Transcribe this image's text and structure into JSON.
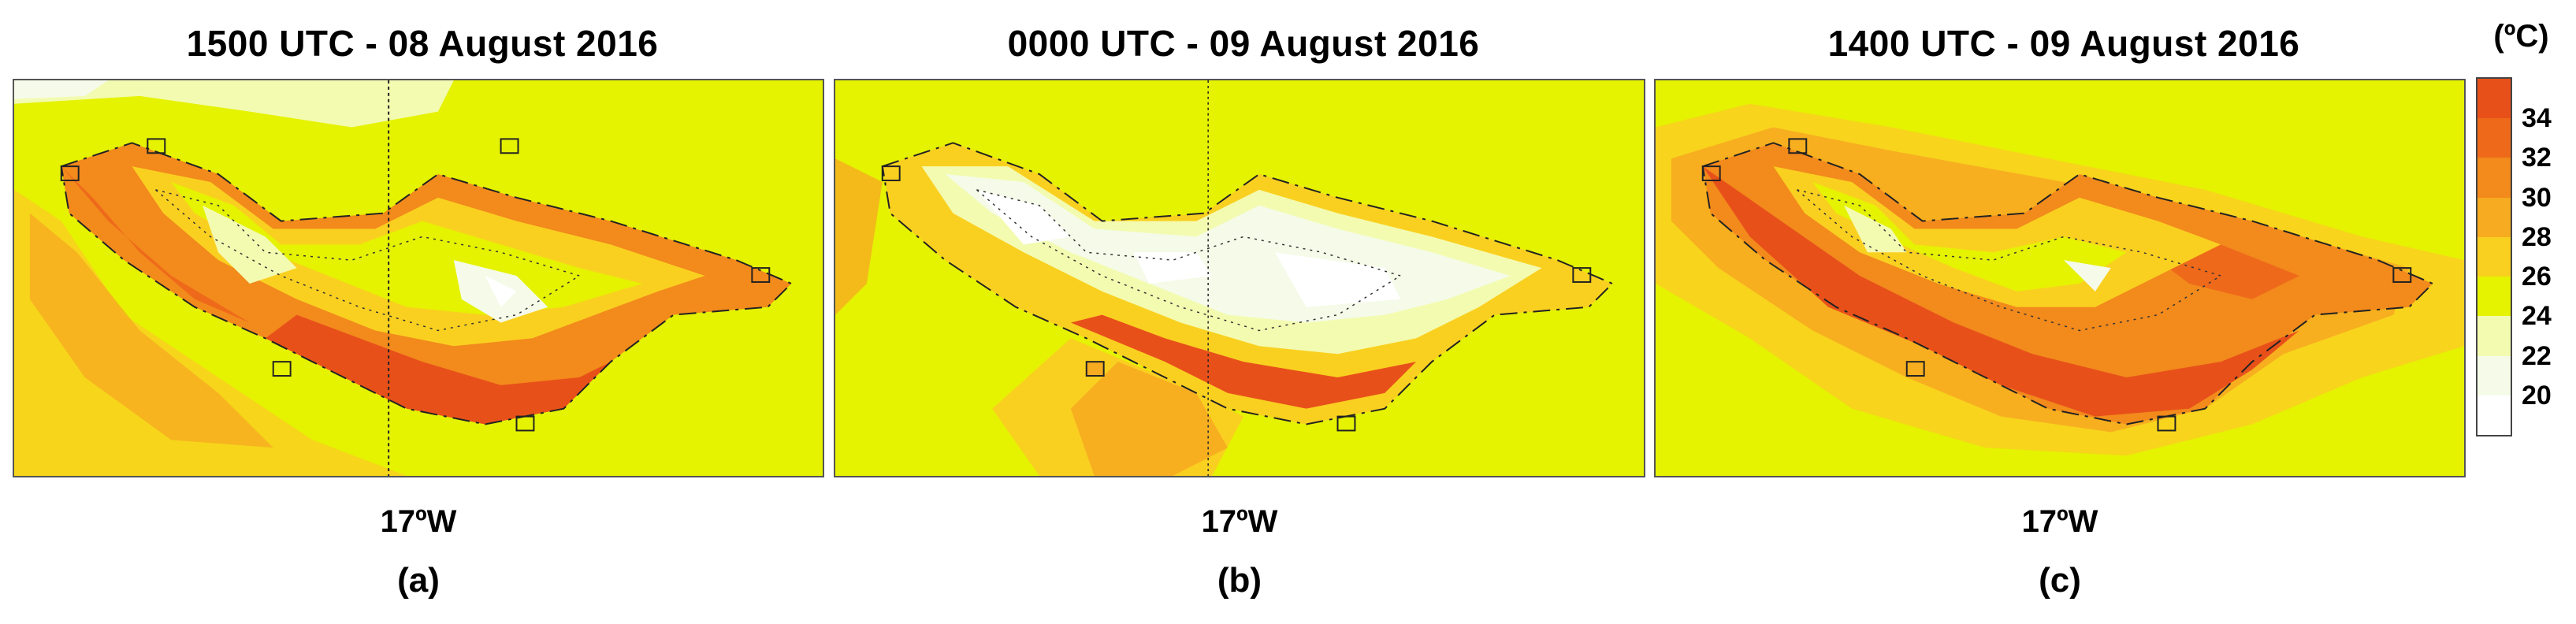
{
  "panels": [
    {
      "title": "1500 UTC - 08 August 2016",
      "lon_label": "17ºW",
      "letter": "(a)",
      "scenario": "day1"
    },
    {
      "title": "0000 UTC - 09 August 2016",
      "lon_label": "17ºW",
      "letter": "(b)",
      "scenario": "night"
    },
    {
      "title": "1400 UTC - 09 August 2016",
      "lon_label": "17ºW",
      "letter": "(c)",
      "scenario": "day2"
    }
  ],
  "colorbar": {
    "unit": "(ºC)",
    "ticks": [
      "34",
      "32",
      "30",
      "28",
      "26",
      "24",
      "22",
      "20"
    ],
    "levels": [
      {
        "range": "above 34",
        "color": "#e8501a"
      },
      {
        "range": "32-34",
        "color": "#ee6a1a"
      },
      {
        "range": "30-32",
        "color": "#f28a1c"
      },
      {
        "range": "28-30",
        "color": "#f6ab20"
      },
      {
        "range": "26-28",
        "color": "#fad020"
      },
      {
        "range": "24-26",
        "color": "#e5f200"
      },
      {
        "range": "22-24",
        "color": "#f3fbb0"
      },
      {
        "range": "20-22",
        "color": "#f5fbe8"
      },
      {
        "range": "below 20",
        "color": "#ffffff"
      }
    ]
  }
}
